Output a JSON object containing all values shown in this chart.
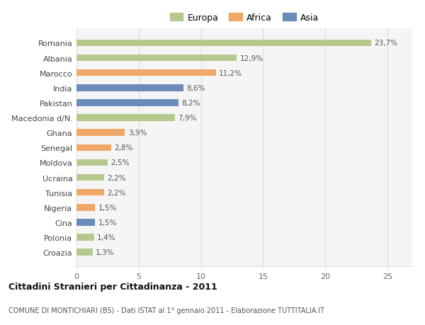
{
  "categories": [
    "Croazia",
    "Polonia",
    "Cina",
    "Nigeria",
    "Tunisia",
    "Ucraina",
    "Moldova",
    "Senegal",
    "Ghana",
    "Macedonia d/N.",
    "Pakistan",
    "India",
    "Marocco",
    "Albania",
    "Romania"
  ],
  "values": [
    1.3,
    1.4,
    1.5,
    1.5,
    2.2,
    2.2,
    2.5,
    2.8,
    3.9,
    7.9,
    8.2,
    8.6,
    11.2,
    12.9,
    23.7
  ],
  "colors": [
    "#b5c98e",
    "#b5c98e",
    "#6b8cba",
    "#f0a868",
    "#f0a868",
    "#b5c98e",
    "#b5c98e",
    "#f0a868",
    "#f0a868",
    "#b5c98e",
    "#6b8cba",
    "#6b8cba",
    "#f0a868",
    "#b5c98e",
    "#b5c98e"
  ],
  "labels": [
    "1,3%",
    "1,4%",
    "1,5%",
    "1,5%",
    "2,2%",
    "2,2%",
    "2,5%",
    "2,8%",
    "3,9%",
    "7,9%",
    "8,2%",
    "8,6%",
    "11,2%",
    "12,9%",
    "23,7%"
  ],
  "legend": [
    {
      "label": "Europa",
      "color": "#b5c98e"
    },
    {
      "label": "Africa",
      "color": "#f0a868"
    },
    {
      "label": "Asia",
      "color": "#6b8cba"
    }
  ],
  "title": "Cittadini Stranieri per Cittadinanza - 2011",
  "subtitle": "COMUNE DI MONTICHIARI (BS) - Dati ISTAT al 1° gennaio 2011 - Elaborazione TUTTITALIA.IT",
  "xlim": [
    0,
    27
  ],
  "xticks": [
    0,
    5,
    10,
    15,
    20,
    25
  ],
  "background_color": "#ffffff",
  "plot_bg_color": "#f5f5f5",
  "grid_color": "#dddddd",
  "bar_height": 0.45,
  "figsize": [
    6.0,
    4.6
  ],
  "dpi": 100
}
